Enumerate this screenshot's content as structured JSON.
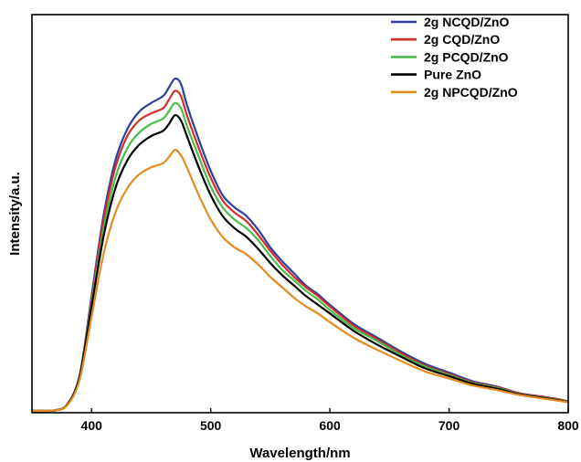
{
  "chart_data": {
    "type": "line",
    "title": "",
    "xlabel": "Wavelength/nm",
    "ylabel": "Intensity/a.u.",
    "xlim": [
      350,
      800
    ],
    "ylim": [
      0,
      1.0
    ],
    "x_ticks": [
      400,
      500,
      600,
      700,
      800
    ],
    "y_ticks_visible": false,
    "grid": false,
    "legend_position": "top-right",
    "series": [
      {
        "name": "2g NCQD/ZnO",
        "color": "#2E3F9E",
        "points": [
          [
            350,
            0.0
          ],
          [
            370,
            0.002
          ],
          [
            380,
            0.02
          ],
          [
            390,
            0.1
          ],
          [
            400,
            0.33
          ],
          [
            410,
            0.56
          ],
          [
            420,
            0.72
          ],
          [
            430,
            0.81
          ],
          [
            440,
            0.86
          ],
          [
            450,
            0.885
          ],
          [
            460,
            0.905
          ],
          [
            465,
            0.93
          ],
          [
            470,
            0.955
          ],
          [
            475,
            0.94
          ],
          [
            480,
            0.88
          ],
          [
            490,
            0.78
          ],
          [
            500,
            0.69
          ],
          [
            510,
            0.62
          ],
          [
            520,
            0.585
          ],
          [
            530,
            0.56
          ],
          [
            540,
            0.52
          ],
          [
            550,
            0.47
          ],
          [
            560,
            0.43
          ],
          [
            570,
            0.395
          ],
          [
            580,
            0.36
          ],
          [
            590,
            0.335
          ],
          [
            600,
            0.305
          ],
          [
            620,
            0.25
          ],
          [
            640,
            0.21
          ],
          [
            660,
            0.17
          ],
          [
            680,
            0.135
          ],
          [
            700,
            0.11
          ],
          [
            720,
            0.085
          ],
          [
            740,
            0.07
          ],
          [
            760,
            0.05
          ],
          [
            780,
            0.04
          ],
          [
            800,
            0.028
          ]
        ]
      },
      {
        "name": "2g CQD/ZnO",
        "color": "#D12E2E",
        "points": [
          [
            350,
            0.0
          ],
          [
            370,
            0.002
          ],
          [
            380,
            0.02
          ],
          [
            390,
            0.1
          ],
          [
            400,
            0.32
          ],
          [
            410,
            0.545
          ],
          [
            420,
            0.7
          ],
          [
            430,
            0.79
          ],
          [
            440,
            0.835
          ],
          [
            450,
            0.855
          ],
          [
            460,
            0.87
          ],
          [
            465,
            0.895
          ],
          [
            470,
            0.92
          ],
          [
            475,
            0.905
          ],
          [
            480,
            0.85
          ],
          [
            490,
            0.755
          ],
          [
            500,
            0.67
          ],
          [
            510,
            0.605
          ],
          [
            520,
            0.57
          ],
          [
            530,
            0.545
          ],
          [
            540,
            0.505
          ],
          [
            550,
            0.46
          ],
          [
            560,
            0.42
          ],
          [
            570,
            0.385
          ],
          [
            580,
            0.355
          ],
          [
            590,
            0.33
          ],
          [
            600,
            0.3
          ],
          [
            620,
            0.245
          ],
          [
            640,
            0.205
          ],
          [
            660,
            0.165
          ],
          [
            680,
            0.13
          ],
          [
            700,
            0.106
          ],
          [
            720,
            0.082
          ],
          [
            740,
            0.068
          ],
          [
            760,
            0.05
          ],
          [
            780,
            0.04
          ],
          [
            800,
            0.028
          ]
        ]
      },
      {
        "name": "2g PCQD/ZnO",
        "color": "#4CBB4C",
        "points": [
          [
            350,
            0.0
          ],
          [
            370,
            0.002
          ],
          [
            380,
            0.02
          ],
          [
            390,
            0.1
          ],
          [
            400,
            0.31
          ],
          [
            410,
            0.52
          ],
          [
            420,
            0.67
          ],
          [
            430,
            0.755
          ],
          [
            440,
            0.8
          ],
          [
            450,
            0.825
          ],
          [
            460,
            0.84
          ],
          [
            465,
            0.862
          ],
          [
            470,
            0.885
          ],
          [
            475,
            0.87
          ],
          [
            480,
            0.82
          ],
          [
            490,
            0.73
          ],
          [
            500,
            0.645
          ],
          [
            510,
            0.585
          ],
          [
            520,
            0.55
          ],
          [
            530,
            0.525
          ],
          [
            540,
            0.49
          ],
          [
            550,
            0.445
          ],
          [
            560,
            0.405
          ],
          [
            570,
            0.375
          ],
          [
            580,
            0.345
          ],
          [
            590,
            0.32
          ],
          [
            600,
            0.29
          ],
          [
            620,
            0.238
          ],
          [
            640,
            0.2
          ],
          [
            660,
            0.16
          ],
          [
            680,
            0.127
          ],
          [
            700,
            0.103
          ],
          [
            720,
            0.08
          ],
          [
            740,
            0.066
          ],
          [
            760,
            0.048
          ],
          [
            780,
            0.038
          ],
          [
            800,
            0.027
          ]
        ]
      },
      {
        "name": "Pure ZnO",
        "color": "#000000",
        "points": [
          [
            350,
            0.0
          ],
          [
            370,
            0.002
          ],
          [
            380,
            0.02
          ],
          [
            390,
            0.1
          ],
          [
            400,
            0.3
          ],
          [
            410,
            0.5
          ],
          [
            420,
            0.64
          ],
          [
            430,
            0.72
          ],
          [
            440,
            0.765
          ],
          [
            450,
            0.79
          ],
          [
            460,
            0.805
          ],
          [
            465,
            0.825
          ],
          [
            470,
            0.85
          ],
          [
            475,
            0.835
          ],
          [
            480,
            0.79
          ],
          [
            490,
            0.7
          ],
          [
            500,
            0.62
          ],
          [
            510,
            0.56
          ],
          [
            520,
            0.525
          ],
          [
            530,
            0.5
          ],
          [
            540,
            0.465
          ],
          [
            550,
            0.425
          ],
          [
            560,
            0.39
          ],
          [
            570,
            0.36
          ],
          [
            580,
            0.33
          ],
          [
            590,
            0.305
          ],
          [
            600,
            0.28
          ],
          [
            620,
            0.23
          ],
          [
            640,
            0.19
          ],
          [
            660,
            0.155
          ],
          [
            680,
            0.122
          ],
          [
            700,
            0.1
          ],
          [
            720,
            0.078
          ],
          [
            740,
            0.064
          ],
          [
            760,
            0.047
          ],
          [
            780,
            0.037
          ],
          [
            800,
            0.026
          ]
        ]
      },
      {
        "name": "2g NPCQD/ZnO",
        "color": "#E58A1F",
        "points": [
          [
            350,
            0.0
          ],
          [
            370,
            0.002
          ],
          [
            380,
            0.018
          ],
          [
            390,
            0.09
          ],
          [
            400,
            0.27
          ],
          [
            410,
            0.45
          ],
          [
            420,
            0.57
          ],
          [
            430,
            0.64
          ],
          [
            440,
            0.68
          ],
          [
            450,
            0.7
          ],
          [
            460,
            0.712
          ],
          [
            465,
            0.73
          ],
          [
            470,
            0.75
          ],
          [
            475,
            0.735
          ],
          [
            480,
            0.7
          ],
          [
            490,
            0.62
          ],
          [
            500,
            0.55
          ],
          [
            510,
            0.5
          ],
          [
            520,
            0.47
          ],
          [
            530,
            0.45
          ],
          [
            540,
            0.42
          ],
          [
            550,
            0.385
          ],
          [
            560,
            0.355
          ],
          [
            570,
            0.325
          ],
          [
            580,
            0.3
          ],
          [
            590,
            0.28
          ],
          [
            600,
            0.255
          ],
          [
            620,
            0.21
          ],
          [
            640,
            0.175
          ],
          [
            660,
            0.143
          ],
          [
            680,
            0.113
          ],
          [
            700,
            0.093
          ],
          [
            720,
            0.073
          ],
          [
            740,
            0.06
          ],
          [
            760,
            0.045
          ],
          [
            780,
            0.035
          ],
          [
            800,
            0.025
          ]
        ]
      }
    ]
  }
}
